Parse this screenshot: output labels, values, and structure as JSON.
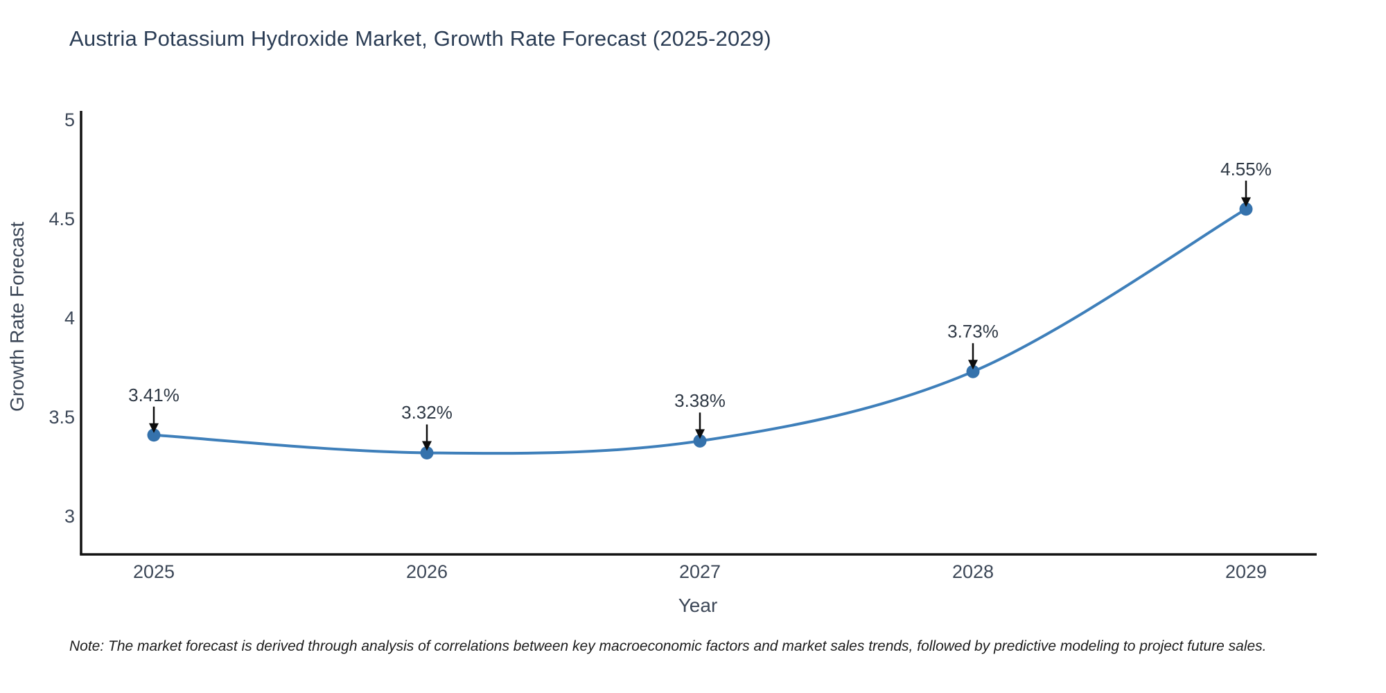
{
  "title": "Austria Potassium Hydroxide Market, Growth Rate Forecast (2025-2029)",
  "note": "Note: The market forecast is derived through analysis of correlations between key macroeconomic factors and market sales trends, followed by predictive modeling to project future sales.",
  "colors": {
    "line": "#3e7fba",
    "marker": "#3572ac",
    "spine": "#111111",
    "arrow": "#0d0d0d",
    "title_text": "#2a3c54",
    "axis_text": "#3c4757",
    "annotation_text": "#2e3844",
    "background": "#ffffff"
  },
  "chart_data": {
    "type": "line",
    "title": "Austria Potassium Hydroxide Market, Growth Rate Forecast (2025-2029)",
    "xlabel": "Year",
    "ylabel": "Growth Rate Forecast",
    "categories": [
      "2025",
      "2026",
      "2027",
      "2028",
      "2029"
    ],
    "values": [
      3.41,
      3.32,
      3.38,
      3.73,
      4.55
    ],
    "point_labels": [
      "3.41%",
      "3.32%",
      "3.38%",
      "3.73%",
      "4.55%"
    ],
    "yticks": [
      3,
      3.5,
      4,
      4.5,
      5
    ],
    "ytick_labels": [
      "3",
      "3.5",
      "4",
      "4.5",
      "5"
    ],
    "ylim": [
      2.81,
      5.06
    ],
    "grid": false,
    "legend_position": "none",
    "line_style": "smooth",
    "marker": "circle",
    "annotations": "value labels with down arrows above each point"
  }
}
